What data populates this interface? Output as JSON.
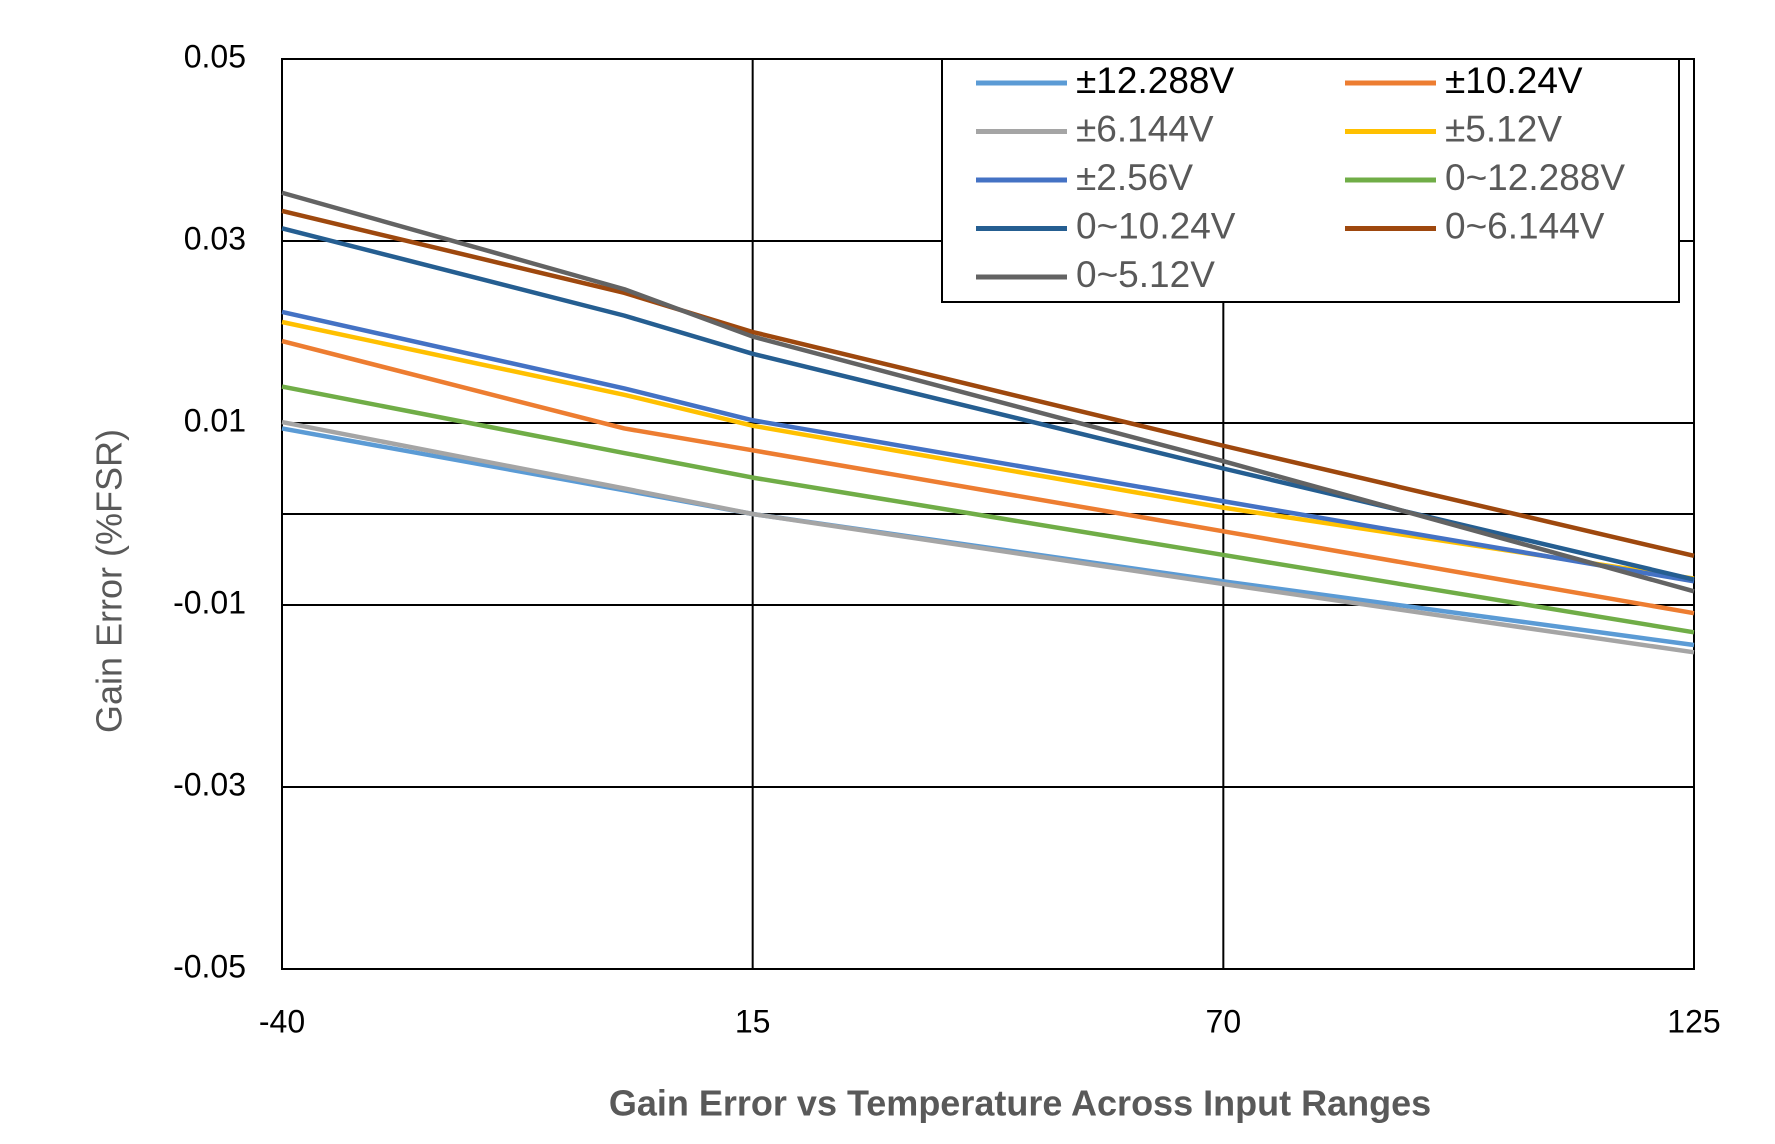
{
  "chart_data": {
    "type": "line",
    "title": "Gain Error vs Temperature Across Input Ranges",
    "y_label": "Gain Error (%FSR)",
    "x": [
      -40,
      0,
      15,
      70,
      125
    ],
    "xlim": [
      -40,
      125
    ],
    "xticks": [
      -40,
      15,
      70,
      125
    ],
    "ylim": [
      -0.05,
      0.05
    ],
    "yticks": [
      0.05,
      0.03,
      0.01,
      -0.01,
      -0.03,
      -0.05
    ],
    "grid": true,
    "legend": "upper right",
    "series": [
      {
        "name": "±12.288V",
        "color": "#5b9bd5",
        "values": [
          0.0094,
          0.0026,
          0,
          -0.0074,
          -0.0144
        ]
      },
      {
        "name": "±10.24V",
        "color": "#ed7d31",
        "values": [
          0.019,
          0.0094,
          0.007,
          -0.0019,
          -0.0109
        ]
      },
      {
        "name": "±6.144V",
        "color": "#a5a5a5",
        "values": [
          0.0101,
          0.0028,
          0,
          -0.0077,
          -0.0152
        ]
      },
      {
        "name": "±5.12V",
        "color": "#ffc000",
        "values": [
          0.0211,
          0.0131,
          0.0097,
          0.0007,
          -0.0071
        ]
      },
      {
        "name": "±2.56V",
        "color": "#4472c4",
        "values": [
          0.0222,
          0.0138,
          0.0103,
          0.0014,
          -0.0074
        ]
      },
      {
        "name": "0~12.288V",
        "color": "#70ad47",
        "values": [
          0.014,
          0.0067,
          0.004,
          -0.0045,
          -0.013
        ]
      },
      {
        "name": "0~10.24V",
        "color": "#255e91",
        "values": [
          0.0314,
          0.0218,
          0.0176,
          0.005,
          -0.0072
        ]
      },
      {
        "name": "0~6.144V",
        "color": "#9e480e",
        "values": [
          0.0333,
          0.0243,
          0.02,
          0.0075,
          -0.0046
        ]
      },
      {
        "name": "0~5.12V",
        "color": "#636363",
        "values": [
          0.0353,
          0.0247,
          0.0195,
          0.0058,
          -0.0085
        ]
      }
    ]
  }
}
